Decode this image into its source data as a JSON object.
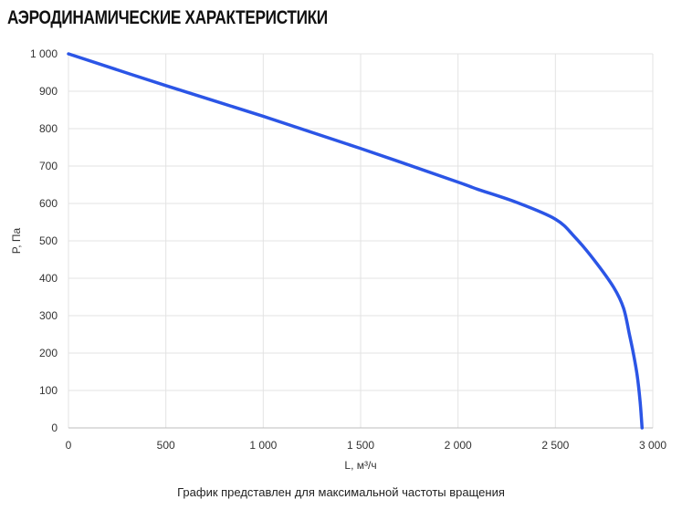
{
  "chart_data": {
    "type": "line",
    "title": "АЭРОДИНАМИЧЕСКИЕ ХАРАКТЕРИСТИКИ",
    "xlabel": "L, м³/ч",
    "ylabel": "P, Па",
    "xlim": [
      0,
      3000
    ],
    "ylim": [
      0,
      1000
    ],
    "x_ticks": [
      0,
      500,
      1000,
      1500,
      2000,
      2500,
      3000
    ],
    "x_tick_labels": [
      "0",
      "500",
      "1 000",
      "1 500",
      "2 000",
      "2 500",
      "3 000"
    ],
    "y_ticks": [
      0,
      100,
      200,
      300,
      400,
      500,
      600,
      700,
      800,
      900,
      1000
    ],
    "y_tick_labels": [
      "0",
      "100",
      "200",
      "300",
      "400",
      "500",
      "600",
      "700",
      "800",
      "900",
      "1 000"
    ],
    "grid": true,
    "series": [
      {
        "color": "#2b55e6",
        "x": [
          0,
          500,
          1000,
          1500,
          2000,
          2100,
          2300,
          2500,
          2600,
          2700,
          2800,
          2850,
          2880,
          2900,
          2920,
          2935,
          2945
        ],
        "y": [
          1000,
          915,
          833,
          747,
          657,
          638,
          603,
          558,
          510,
          448,
          375,
          320,
          250,
          200,
          140,
          70,
          0
        ]
      }
    ],
    "note": "График представлен для максимальной частоты вращения"
  }
}
